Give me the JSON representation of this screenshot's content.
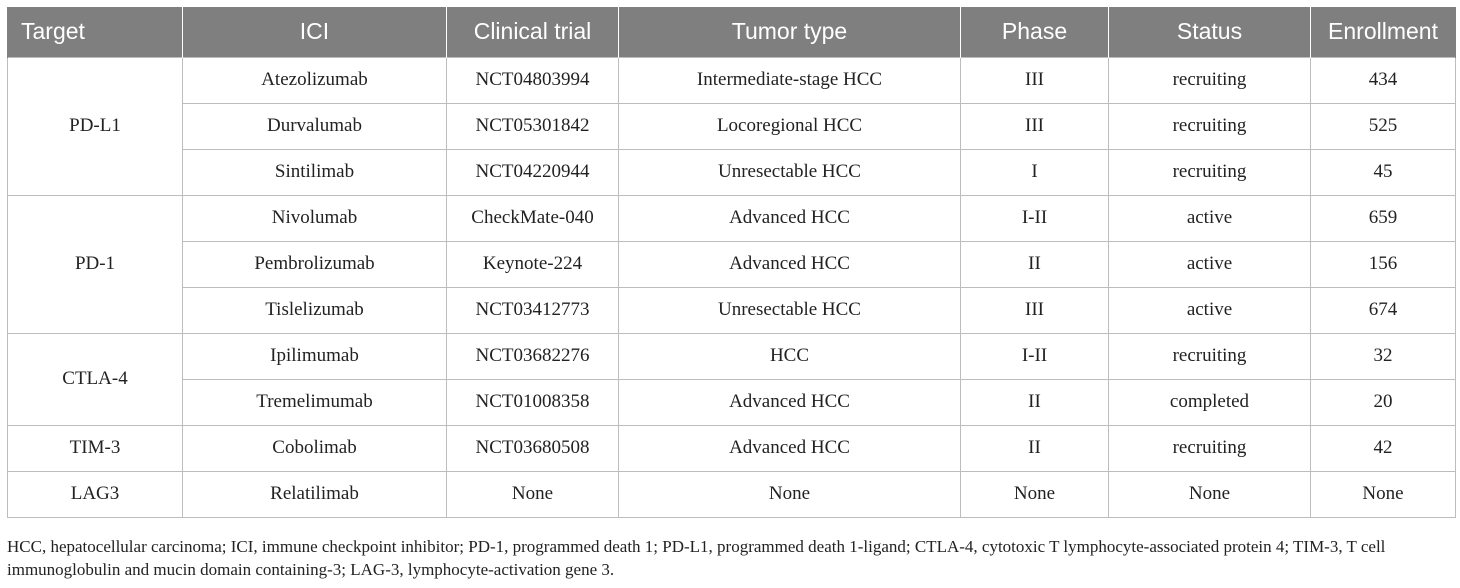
{
  "table": {
    "headers": [
      "Target",
      "ICI",
      "Clinical trial",
      "Tumor type",
      "Phase",
      "Status",
      "Enrollment"
    ],
    "groups": [
      {
        "target": "PD-L1",
        "rows": [
          [
            "Atezolizumab",
            "NCT04803994",
            "Intermediate-stage HCC",
            "III",
            "recruiting",
            "434"
          ],
          [
            "Durvalumab",
            "NCT05301842",
            "Locoregional HCC",
            "III",
            "recruiting",
            "525"
          ],
          [
            "Sintilimab",
            "NCT04220944",
            "Unresectable HCC",
            "I",
            "recruiting",
            "45"
          ]
        ]
      },
      {
        "target": "PD-1",
        "rows": [
          [
            "Nivolumab",
            "CheckMate-040",
            "Advanced HCC",
            "I-II",
            "active",
            "659"
          ],
          [
            "Pembrolizumab",
            "Keynote-224",
            "Advanced HCC",
            "II",
            "active",
            "156"
          ],
          [
            "Tislelizumab",
            "NCT03412773",
            "Unresectable HCC",
            "III",
            "active",
            "674"
          ]
        ]
      },
      {
        "target": "CTLA-4",
        "rows": [
          [
            "Ipilimumab",
            "NCT03682276",
            "HCC",
            "I-II",
            "recruiting",
            "32"
          ],
          [
            "Tremelimumab",
            "NCT01008358",
            "Advanced HCC",
            "II",
            "completed",
            "20"
          ]
        ]
      },
      {
        "target": "TIM-3",
        "rows": [
          [
            "Cobolimab",
            "NCT03680508",
            "Advanced HCC",
            "II",
            "recruiting",
            "42"
          ]
        ]
      },
      {
        "target": "LAG3",
        "rows": [
          [
            "Relatilimab",
            "None",
            "None",
            "None",
            "None",
            "None"
          ]
        ]
      }
    ]
  },
  "footnote": "HCC, hepatocellular carcinoma; ICI, immune checkpoint inhibitor; PD-1, programmed death 1; PD-L1, programmed death 1-ligand; CTLA-4, cytotoxic T lymphocyte-associated protein 4; TIM-3, T cell immunoglobulin and mucin domain containing-3; LAG-3, lymphocyte-activation gene 3."
}
